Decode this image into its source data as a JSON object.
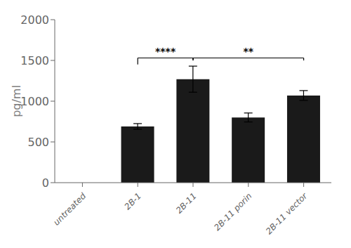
{
  "chart_data": {
    "type": "bar",
    "categories": [
      "untreated",
      "2B-1",
      "2B-11",
      "2B-11 porin",
      "2B-11 vector"
    ],
    "values": [
      0,
      690,
      1270,
      800,
      1070
    ],
    "errors": [
      0,
      35,
      160,
      55,
      60
    ],
    "color": "#1a1a1a",
    "ylabel": "pg/ml",
    "ylim": [
      0,
      2000
    ],
    "yticks": [
      0,
      500,
      1000,
      1500,
      2000
    ],
    "grid": false,
    "annotations": [
      {
        "x1": "2B-1",
        "x2": "2B-11",
        "y1": 1450,
        "y2": 1500,
        "y_top": 1530,
        "label": "****"
      },
      {
        "x1": "2B-11",
        "x2": "2B-11 vector",
        "y1": 1500,
        "y2": 1500,
        "y_top": 1530,
        "label": "**"
      }
    ]
  }
}
